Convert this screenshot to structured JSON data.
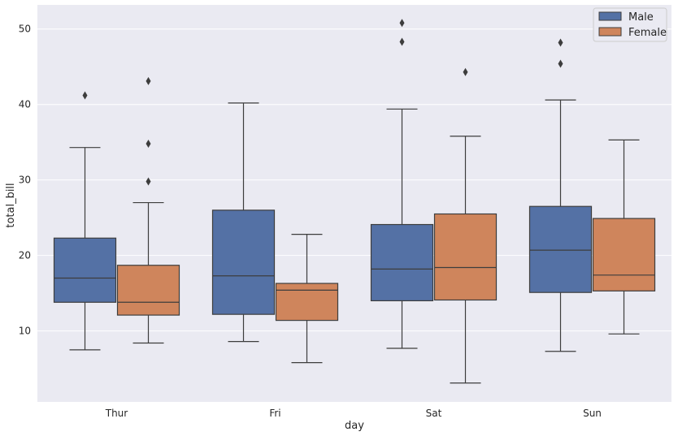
{
  "chart_data": {
    "type": "box",
    "title": "",
    "xlabel": "day",
    "ylabel": "total_bill",
    "categories": [
      "Thur",
      "Fri",
      "Sat",
      "Sun"
    ],
    "yticks": [
      10,
      20,
      30,
      40,
      50
    ],
    "ylim": [
      0.6,
      53.2
    ],
    "grid": true,
    "legend": {
      "position": "top-right"
    },
    "series": [
      {
        "name": "Male",
        "color": "#5471a5",
        "boxes": [
          {
            "category": "Thur",
            "whisker_low": 7.5,
            "q1": 13.8,
            "median": 17.0,
            "q3": 22.3,
            "whisker_high": 34.3,
            "outliers": [
              41.2
            ]
          },
          {
            "category": "Fri",
            "whisker_low": 8.6,
            "q1": 12.2,
            "median": 17.3,
            "q3": 26.0,
            "whisker_high": 40.2,
            "outliers": []
          },
          {
            "category": "Sat",
            "whisker_low": 7.7,
            "q1": 14.0,
            "median": 18.2,
            "q3": 24.1,
            "whisker_high": 39.4,
            "outliers": [
              48.3,
              50.8
            ]
          },
          {
            "category": "Sun",
            "whisker_low": 7.3,
            "q1": 15.1,
            "median": 20.7,
            "q3": 26.5,
            "whisker_high": 40.6,
            "outliers": [
              45.4,
              48.2
            ]
          }
        ]
      },
      {
        "name": "Female",
        "color": "#cf855c",
        "boxes": [
          {
            "category": "Thur",
            "whisker_low": 8.4,
            "q1": 12.1,
            "median": 13.8,
            "q3": 18.7,
            "whisker_high": 27.0,
            "outliers": [
              29.8,
              34.8,
              43.1
            ]
          },
          {
            "category": "Fri",
            "whisker_low": 5.8,
            "q1": 11.4,
            "median": 15.4,
            "q3": 16.3,
            "whisker_high": 22.8,
            "outliers": []
          },
          {
            "category": "Sat",
            "whisker_low": 3.1,
            "q1": 14.1,
            "median": 18.4,
            "q3": 25.5,
            "whisker_high": 35.8,
            "outliers": [
              44.3
            ]
          },
          {
            "category": "Sun",
            "whisker_low": 9.6,
            "q1": 15.3,
            "median": 17.4,
            "q3": 24.9,
            "whisker_high": 35.3,
            "outliers": []
          }
        ]
      }
    ]
  }
}
